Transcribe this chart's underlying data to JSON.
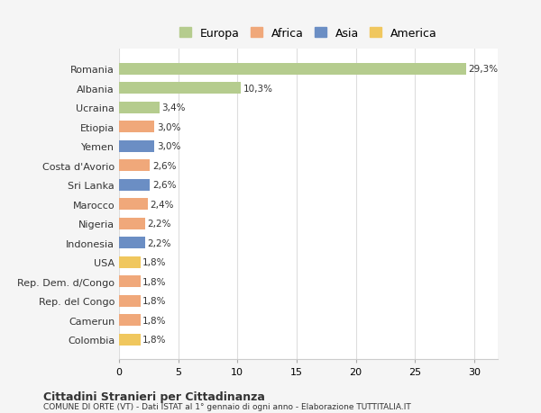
{
  "categories": [
    "Colombia",
    "Camerun",
    "Rep. del Congo",
    "Rep. Dem. d/Congo",
    "USA",
    "Indonesia",
    "Nigeria",
    "Marocco",
    "Sri Lanka",
    "Costa d'Avorio",
    "Yemen",
    "Etiopia",
    "Ucraina",
    "Albania",
    "Romania"
  ],
  "values": [
    1.8,
    1.8,
    1.8,
    1.8,
    1.8,
    2.2,
    2.2,
    2.4,
    2.6,
    2.6,
    3.0,
    3.0,
    3.4,
    10.3,
    29.3
  ],
  "labels": [
    "1,8%",
    "1,8%",
    "1,8%",
    "1,8%",
    "1,8%",
    "2,2%",
    "2,2%",
    "2,4%",
    "2,6%",
    "2,6%",
    "3,0%",
    "3,0%",
    "3,4%",
    "10,3%",
    "29,3%"
  ],
  "colors": [
    "#f0c75e",
    "#f0a87a",
    "#f0a87a",
    "#f0a87a",
    "#f0c75e",
    "#6b8ec4",
    "#f0a87a",
    "#f0a87a",
    "#6b8ec4",
    "#f0a87a",
    "#6b8ec4",
    "#f0a87a",
    "#b5cc8e",
    "#b5cc8e",
    "#b5cc8e"
  ],
  "legend_labels": [
    "Europa",
    "Africa",
    "Asia",
    "America"
  ],
  "legend_colors": [
    "#b5cc8e",
    "#f0a87a",
    "#6b8ec4",
    "#f0c75e"
  ],
  "title": "Cittadini Stranieri per Cittadinanza",
  "subtitle": "COMUNE DI ORTE (VT) - Dati ISTAT al 1° gennaio di ogni anno - Elaborazione TUTTITALIA.IT",
  "xlim": [
    0,
    32
  ],
  "xticks": [
    0,
    5,
    10,
    15,
    20,
    25,
    30
  ],
  "background_color": "#f5f5f5",
  "bar_background": "#ffffff",
  "grid_color": "#dddddd",
  "text_color": "#333333"
}
